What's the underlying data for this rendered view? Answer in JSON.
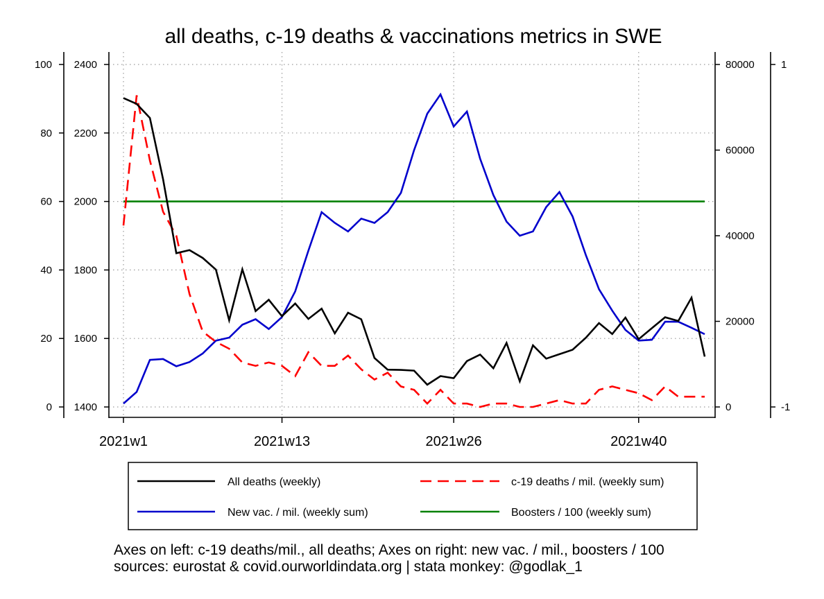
{
  "chart_data": {
    "type": "line",
    "title": "all deaths, c-19 deaths & vaccinations metrics in SWE",
    "x": [
      1,
      2,
      3,
      4,
      5,
      6,
      7,
      8,
      9,
      10,
      11,
      12,
      13,
      14,
      15,
      16,
      17,
      18,
      19,
      20,
      21,
      22,
      23,
      24,
      25,
      26,
      27,
      28,
      29,
      30,
      31,
      32,
      33,
      34,
      35,
      36,
      37,
      38,
      39,
      40,
      41,
      42,
      43,
      44,
      45
    ],
    "x_ticks": [
      {
        "value": 1,
        "label": "2021w1"
      },
      {
        "value": 13,
        "label": "2021w13"
      },
      {
        "value": 26,
        "label": "2021w26"
      },
      {
        "value": 40,
        "label": "2021w40"
      }
    ],
    "xlim": [
      1,
      45
    ],
    "axes": {
      "left_outer": {
        "ylim": [
          0,
          100
        ],
        "ticks": [
          "0",
          "20",
          "40",
          "60",
          "80",
          "100"
        ]
      },
      "left_inner": {
        "ylim": [
          1400,
          2400
        ],
        "ticks": [
          "1400",
          "1600",
          "1800",
          "2000",
          "2200",
          "2400"
        ]
      },
      "right_inner": {
        "ylim": [
          0,
          80000
        ],
        "ticks": [
          "0",
          "20000",
          "40000",
          "60000",
          "80000"
        ]
      },
      "right_outer": {
        "ylim": [
          -1,
          1
        ],
        "ticks": [
          "-1",
          "1"
        ]
      }
    },
    "grid": true,
    "series": [
      {
        "name": "All deaths (weekly)",
        "axis": "left_inner",
        "color": "#000000",
        "dash": "solid",
        "values": [
          2302,
          2285,
          2244,
          2065,
          1849,
          1858,
          1835,
          1801,
          1653,
          1802,
          1680,
          1713,
          1665,
          1702,
          1657,
          1687,
          1615,
          1675,
          1656,
          1543,
          1509,
          1508,
          1506,
          1465,
          1490,
          1484,
          1534,
          1553,
          1513,
          1587,
          1475,
          1580,
          1541,
          1554,
          1567,
          1602,
          1645,
          1613,
          1661,
          1598,
          1630,
          1662,
          1651,
          1719,
          1547
        ]
      },
      {
        "name": "c-19 deaths / mil. (weekly sum)",
        "axis": "left_outer",
        "color": "#ff0000",
        "dash": "dashed",
        "values": [
          53,
          91,
          72,
          57,
          50,
          33,
          22,
          19,
          17,
          13,
          12,
          13,
          12,
          9,
          16,
          12,
          12,
          15,
          11,
          8,
          10,
          6,
          5,
          1,
          5,
          1,
          1,
          0,
          1,
          1,
          0,
          0,
          1,
          2,
          1,
          1,
          5,
          6,
          5,
          4,
          2,
          6,
          3,
          3,
          3
        ]
      },
      {
        "name": "New vac. / mil. (weekly sum)",
        "axis": "right_inner",
        "color": "#0000cc",
        "dash": "solid",
        "values": [
          800,
          3500,
          11000,
          11200,
          9500,
          10500,
          12500,
          15500,
          16200,
          19200,
          20500,
          18200,
          21000,
          27000,
          36500,
          45500,
          43000,
          41000,
          44000,
          43000,
          45500,
          50000,
          60000,
          68500,
          73000,
          65500,
          69000,
          58000,
          49500,
          43300,
          40000,
          41000,
          46700,
          50200,
          44500,
          35500,
          27500,
          22500,
          18000,
          15500,
          15700,
          19900,
          19900,
          18500,
          17000
        ]
      },
      {
        "name": "Boosters / 100 (weekly sum)",
        "axis": "right_outer",
        "color": "#008000",
        "dash": "solid",
        "values": [
          0.2,
          0.2,
          0.2,
          0.2,
          0.2,
          0.2,
          0.2,
          0.2,
          0.2,
          0.2,
          0.2,
          0.2,
          0.2,
          0.2,
          0.2,
          0.2,
          0.2,
          0.2,
          0.2,
          0.2,
          0.2,
          0.2,
          0.2,
          0.2,
          0.2,
          0.2,
          0.2,
          0.2,
          0.2,
          0.2,
          0.2,
          0.2,
          0.2,
          0.2,
          0.2,
          0.2,
          0.2,
          0.2,
          0.2,
          0.2,
          0.2,
          0.2,
          0.2,
          0.2,
          0.2
        ]
      }
    ],
    "legend": {
      "placement": "bottom",
      "entries": [
        {
          "label": "All deaths (weekly)",
          "color": "#000000",
          "dash": "solid"
        },
        {
          "label": "c-19 deaths / mil. (weekly sum)",
          "color": "#ff0000",
          "dash": "dashed"
        },
        {
          "label": "New vac. / mil. (weekly sum)",
          "color": "#0000cc",
          "dash": "solid"
        },
        {
          "label": "Boosters / 100 (weekly sum)",
          "color": "#008000",
          "dash": "solid"
        }
      ]
    },
    "notes": [
      "Axes on left: c-19 deaths/mil., all deaths; Axes on right: new vac. / mil., boosters / 100",
      "sources: eurostat & covid.ourworldindata.org | stata monkey: @godlak_1"
    ]
  }
}
